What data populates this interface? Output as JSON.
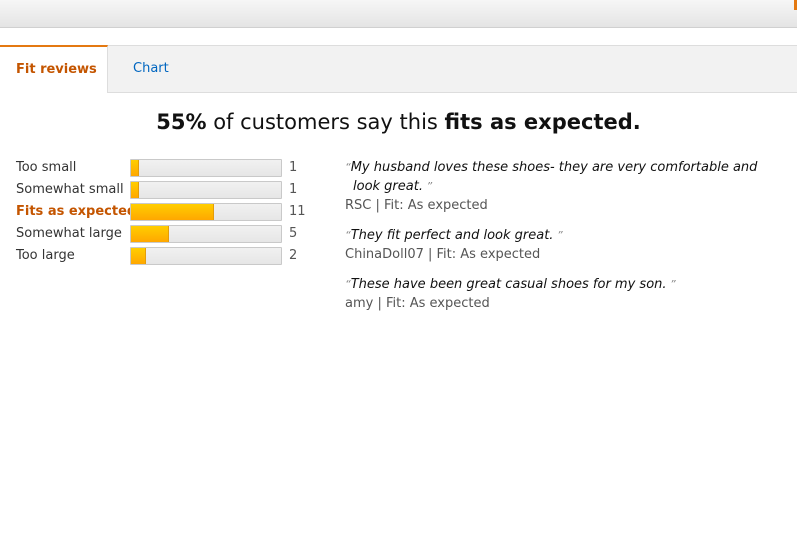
{
  "tabs": {
    "fit_reviews_label": "Fit reviews",
    "chart_label": "Chart"
  },
  "headline": {
    "percent": "55%",
    "middle": " of customers say this ",
    "emphasis": "fits as expected."
  },
  "distribution": [
    {
      "label": "Too small",
      "count": "1",
      "fraction": 0.05
    },
    {
      "label": "Somewhat small",
      "count": "1",
      "fraction": 0.05
    },
    {
      "label": "Fits as expected",
      "count": "11",
      "fraction": 0.55
    },
    {
      "label": "Somewhat large",
      "count": "5",
      "fraction": 0.25
    },
    {
      "label": "Too large",
      "count": "2",
      "fraction": 0.1
    }
  ],
  "quotes": [
    {
      "text": "My husband loves these shoes- they are very comfortable and look great.",
      "meta": "RSC | Fit: As expected"
    },
    {
      "text": "They fit perfect and look great.",
      "meta": "ChinaDoll07 | Fit: As expected"
    },
    {
      "text": "These have been great casual shoes for my son.",
      "meta": "amy | Fit: As expected"
    }
  ],
  "colors": {
    "accent": "#e47911",
    "active_tab_text": "#c45500",
    "link": "#0066c0",
    "bar_fill": "#ffa700"
  }
}
